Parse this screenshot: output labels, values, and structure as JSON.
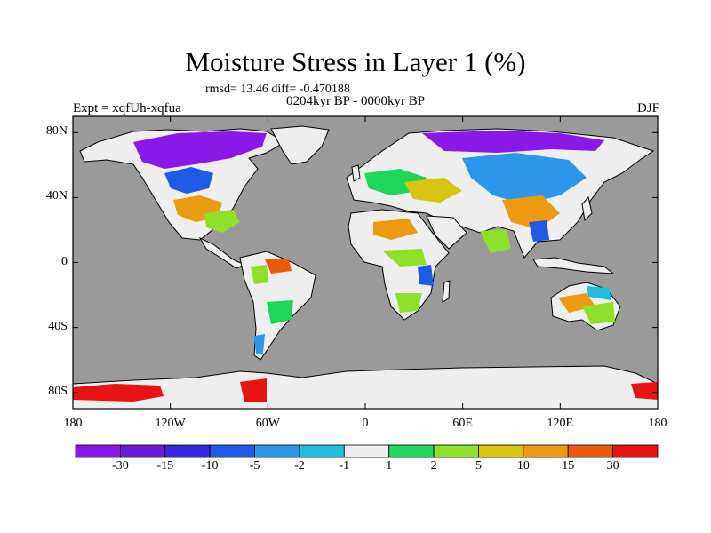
{
  "title": "Moisture Stress in Layer 1 (%)",
  "stats": "rmsd= 13.46 diff= -0.470188",
  "period": "0204kyr BP - 0000kyr BP",
  "experiment": "Expt = xqfUh-xqfua",
  "season": "DJF",
  "colors": {
    "ocean": "#9a9a9a",
    "neutral_land": "#eeeeee",
    "coastline": "#000000"
  },
  "axes": {
    "lat_labels": [
      {
        "value": 80,
        "label": "80N"
      },
      {
        "value": 40,
        "label": "40N"
      },
      {
        "value": 0,
        "label": "0"
      },
      {
        "value": -40,
        "label": "40S"
      },
      {
        "value": -80,
        "label": "80S"
      }
    ],
    "lon_labels": [
      {
        "value": -180,
        "label": "180"
      },
      {
        "value": -120,
        "label": "120W"
      },
      {
        "value": -60,
        "label": "60W"
      },
      {
        "value": 0,
        "label": "0"
      },
      {
        "value": 60,
        "label": "60E"
      },
      {
        "value": 120,
        "label": "120E"
      },
      {
        "value": 180,
        "label": "180"
      }
    ]
  },
  "colorbar": {
    "colors": [
      "#8a18e8",
      "#6a1ad8",
      "#3a28e0",
      "#1e5ae6",
      "#2c96e8",
      "#22bcde",
      "#eeeeee",
      "#20d45c",
      "#8ee02a",
      "#d6c410",
      "#ec9a10",
      "#ec5a12",
      "#e81414"
    ],
    "labels": [
      "-30",
      "-15",
      "-10",
      "-5",
      "-2",
      "-1",
      "1",
      "2",
      "5",
      "10",
      "15",
      "30"
    ]
  }
}
